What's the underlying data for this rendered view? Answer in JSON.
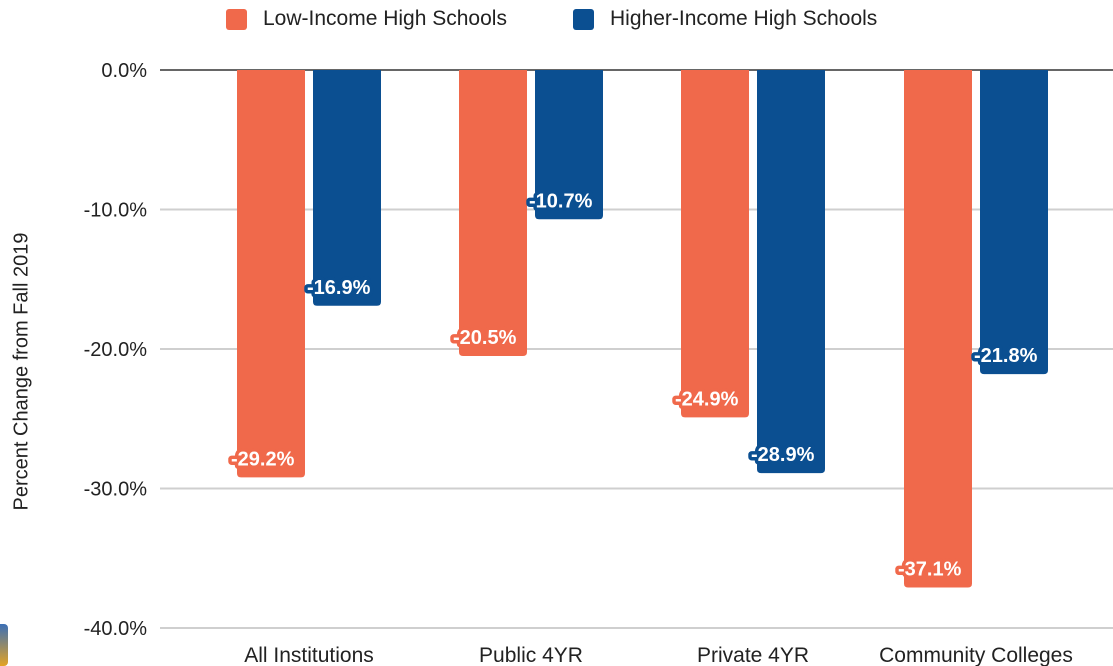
{
  "chart_data": {
    "type": "bar",
    "title": "",
    "xlabel": "",
    "ylabel": "Percent Change from Fall 2019",
    "ylim": [
      -40,
      0
    ],
    "yticks": [
      0,
      -10,
      -20,
      -30,
      -40
    ],
    "ytick_labels": [
      "0.0%",
      "-10.0%",
      "-20.0%",
      "-30.0%",
      "-40.0%"
    ],
    "categories": [
      "All Institutions",
      "Public 4YR",
      "Private 4YR",
      "Community Colleges"
    ],
    "series": [
      {
        "name": "Low-Income High Schools",
        "color": "#f0694b",
        "values": [
          -29.2,
          -20.5,
          -24.9,
          -37.1
        ],
        "labels": [
          "-29.2%",
          "-20.5%",
          "-24.9%",
          "-37.1%"
        ]
      },
      {
        "name": "Higher-Income High Schools",
        "color": "#0b4f91",
        "values": [
          -16.9,
          -10.7,
          -28.9,
          -21.8
        ],
        "labels": [
          "-16.9%",
          "-10.7%",
          "-28.9%",
          "-21.8%"
        ]
      }
    ],
    "grid": true,
    "legend": "top-center"
  }
}
